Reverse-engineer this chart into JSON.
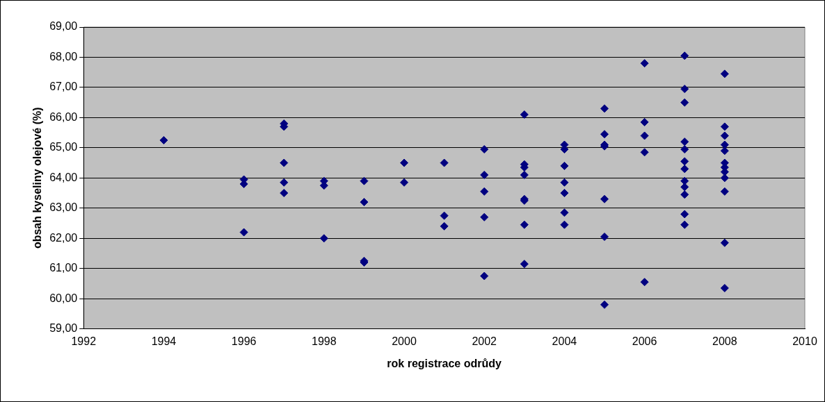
{
  "chart_data": {
    "type": "scatter",
    "xlabel": "rok registrace odrůdy",
    "ylabel": "obsah kyseliny olejové (%)",
    "xlim": [
      1992,
      2010
    ],
    "xticks": [
      1992,
      1994,
      1996,
      1998,
      2000,
      2002,
      2004,
      2006,
      2008,
      2010
    ],
    "ylim": [
      59,
      69
    ],
    "yticks": [
      {
        "value": 59,
        "label": "59,00"
      },
      {
        "value": 60,
        "label": "60,00"
      },
      {
        "value": 61,
        "label": "61,00"
      },
      {
        "value": 62,
        "label": "62,00"
      },
      {
        "value": 63,
        "label": "63,00"
      },
      {
        "value": 64,
        "label": "64,00"
      },
      {
        "value": 65,
        "label": "65,00"
      },
      {
        "value": 66,
        "label": "66,00"
      },
      {
        "value": 67,
        "label": "67,00"
      },
      {
        "value": 68,
        "label": "68,00"
      },
      {
        "value": 69,
        "label": "69,00"
      }
    ],
    "grid": "y",
    "marker": "diamond",
    "series": [
      {
        "color": "#000080",
        "x": [
          1994,
          1996,
          1996,
          1996,
          1997,
          1997,
          1997,
          1997,
          1997,
          1998,
          1998,
          1998,
          1999,
          1999,
          1999,
          1999,
          2000,
          2000,
          2001,
          2001,
          2001,
          2002,
          2002,
          2002,
          2002,
          2002,
          2003,
          2003,
          2003,
          2003,
          2003,
          2003,
          2003,
          2003,
          2004,
          2004,
          2004,
          2004,
          2004,
          2004,
          2004,
          2005,
          2005,
          2005,
          2005,
          2005,
          2005,
          2005,
          2006,
          2006,
          2006,
          2006,
          2006,
          2007,
          2007,
          2007,
          2007,
          2007,
          2007,
          2007,
          2007,
          2007,
          2007,
          2007,
          2007,
          2008,
          2008,
          2008,
          2008,
          2008,
          2008,
          2008,
          2008,
          2008,
          2008,
          2008,
          2008
        ],
        "values": [
          65.25,
          63.95,
          63.8,
          62.2,
          65.8,
          65.7,
          64.5,
          63.85,
          63.5,
          63.9,
          63.75,
          62.0,
          63.9,
          63.2,
          61.25,
          61.2,
          64.5,
          63.85,
          64.5,
          62.75,
          62.4,
          64.95,
          64.1,
          63.55,
          62.7,
          60.75,
          66.1,
          64.45,
          64.35,
          64.1,
          63.3,
          63.25,
          62.45,
          61.15,
          65.1,
          64.95,
          64.4,
          63.85,
          63.5,
          62.85,
          62.45,
          66.3,
          65.45,
          65.1,
          65.05,
          63.3,
          62.05,
          59.8,
          67.8,
          65.85,
          65.4,
          64.85,
          60.55,
          68.05,
          66.95,
          66.5,
          65.2,
          64.95,
          64.55,
          64.3,
          63.9,
          63.7,
          63.45,
          62.8,
          62.45,
          67.45,
          65.7,
          65.4,
          65.1,
          64.9,
          64.5,
          64.35,
          64.2,
          64.0,
          63.55,
          61.85,
          60.35
        ]
      }
    ]
  }
}
